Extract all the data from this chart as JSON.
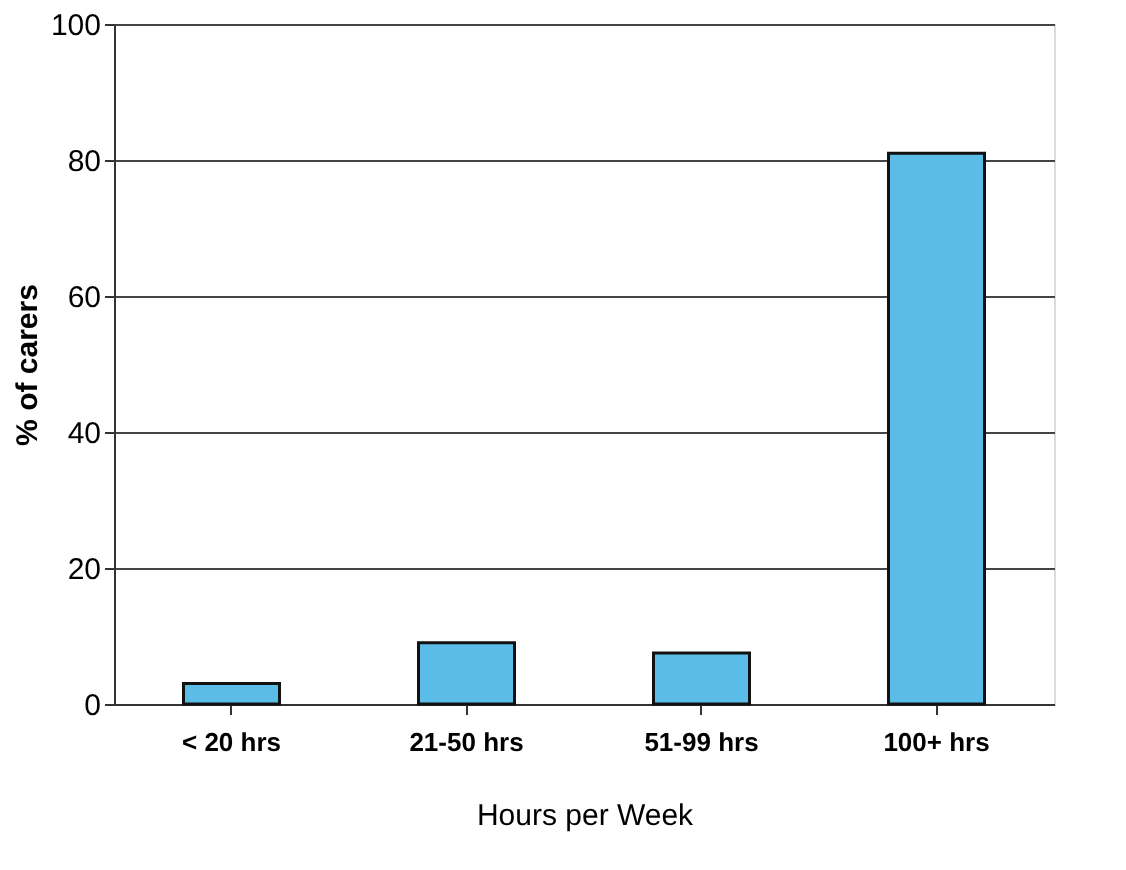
{
  "chart_data": {
    "type": "bar",
    "xlabel": "Hours per Week",
    "ylabel": "% of carers",
    "categories": [
      "< 20 hrs",
      "21-50 hrs",
      "51-99 hrs",
      "100+ hrs"
    ],
    "values": [
      3,
      9,
      7.5,
      81
    ],
    "color": "#5bbce8",
    "ylim": [
      0,
      100
    ],
    "yticks": [
      0,
      20,
      40,
      60,
      80,
      100
    ],
    "grid": "y"
  }
}
